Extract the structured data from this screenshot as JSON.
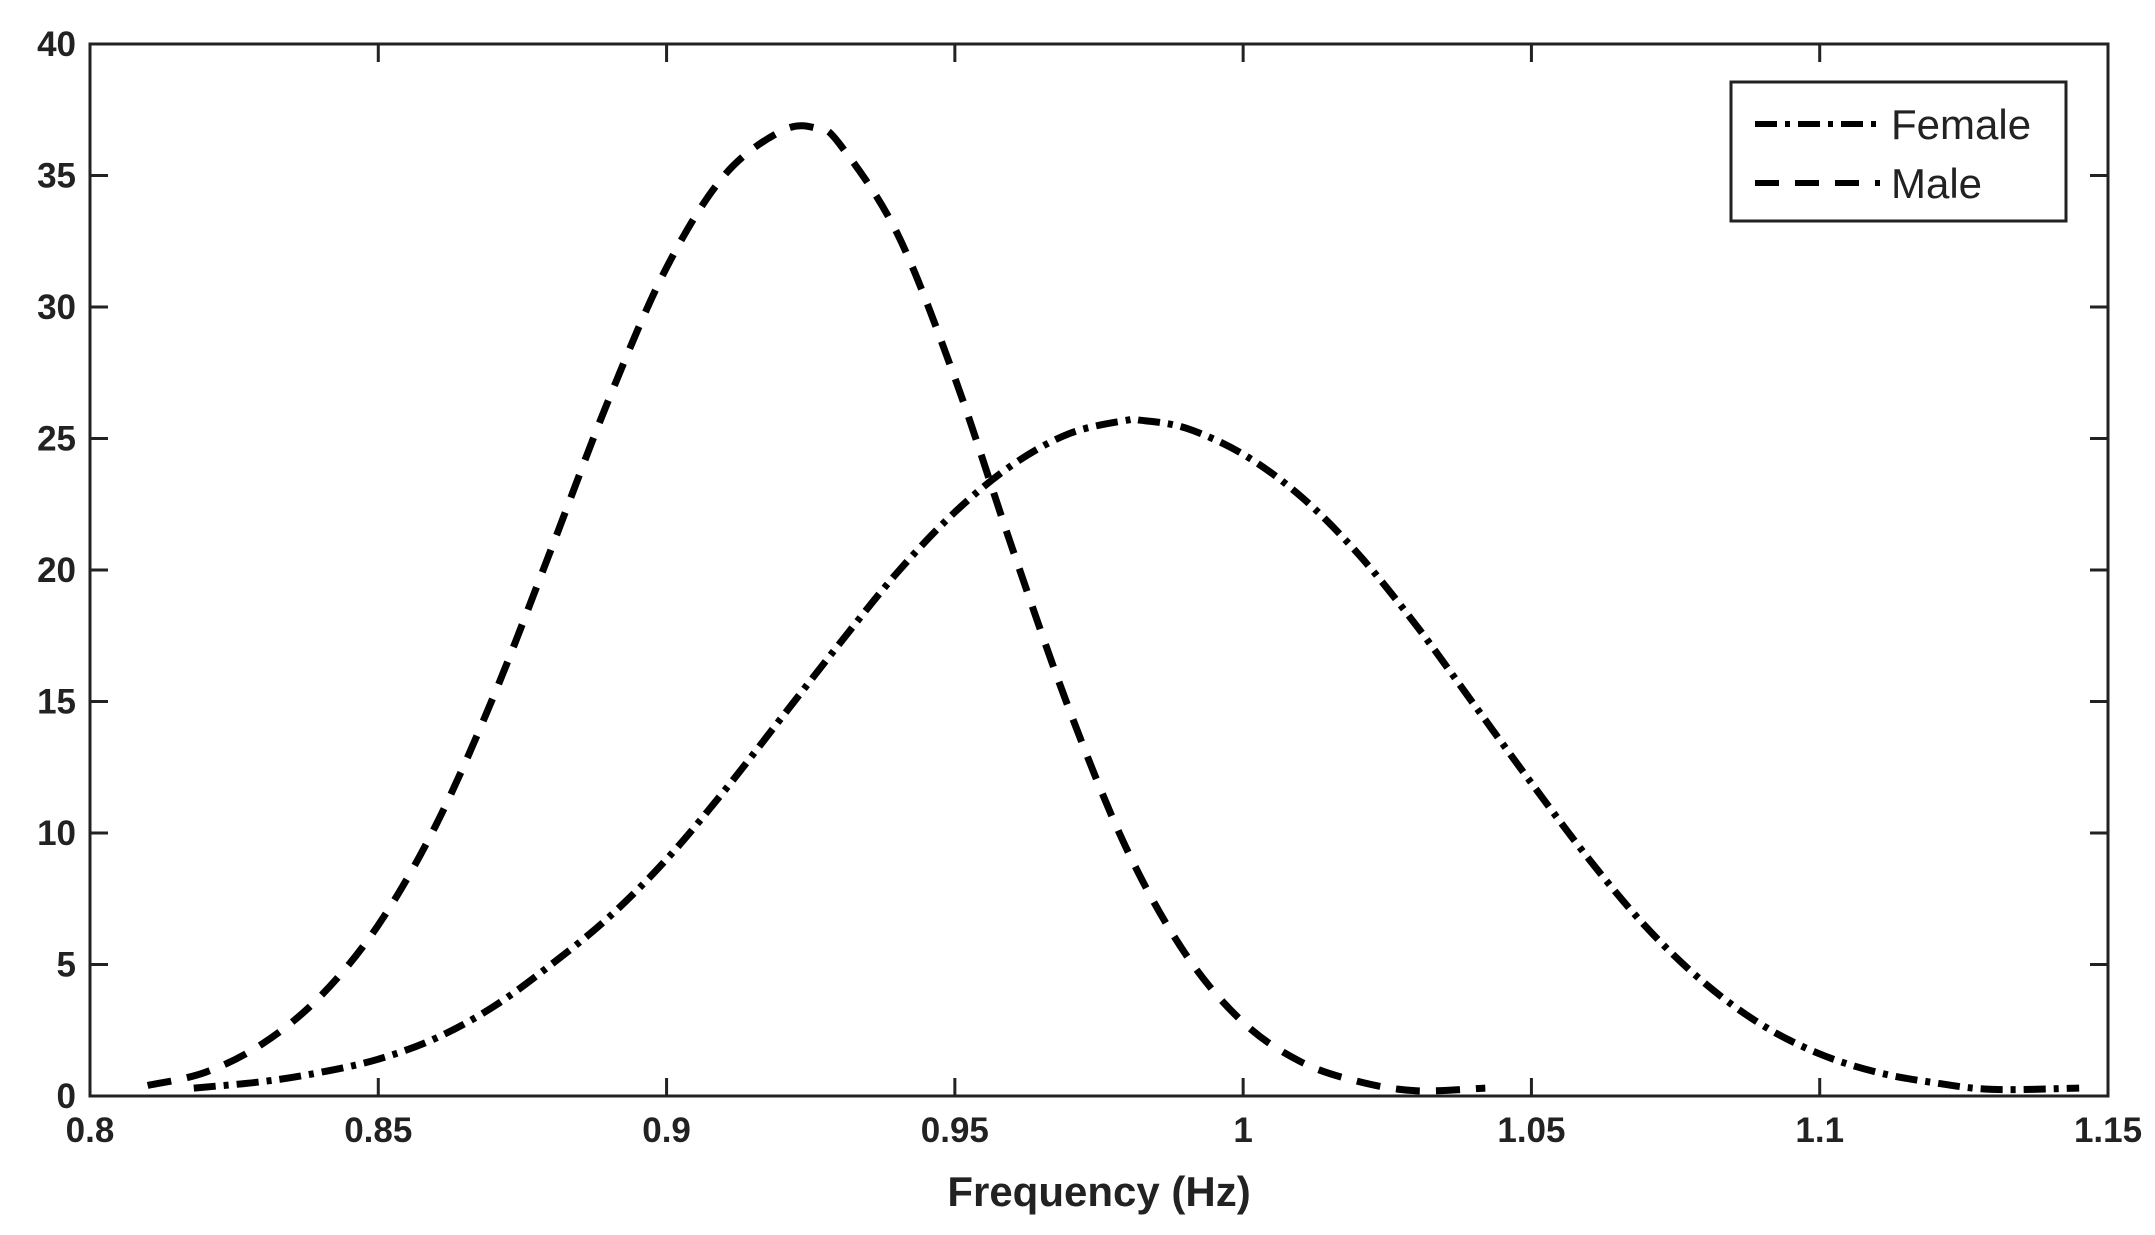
{
  "chart_data": {
    "type": "line",
    "title": "",
    "xlabel": "Frequency (Hz)",
    "ylabel": "",
    "xlim": [
      0.8,
      1.15
    ],
    "ylim": [
      0,
      40
    ],
    "xticks": [
      0.8,
      0.85,
      0.9,
      0.95,
      1.0,
      1.05,
      1.1,
      1.15
    ],
    "xtick_labels": [
      "0.8",
      "0.85",
      "0.9",
      "0.95",
      "1",
      "1.05",
      "1.1",
      "1.15"
    ],
    "yticks": [
      0,
      5,
      10,
      15,
      20,
      25,
      30,
      35,
      40
    ],
    "ytick_labels": [
      "0",
      "5",
      "10",
      "15",
      "20",
      "25",
      "30",
      "35",
      "40"
    ],
    "grid": false,
    "legend_position": "top-right",
    "series": [
      {
        "name": "Female",
        "style": "dash-dot",
        "color": "#000000",
        "x": [
          0.818,
          0.83,
          0.84,
          0.85,
          0.86,
          0.87,
          0.88,
          0.89,
          0.9,
          0.91,
          0.92,
          0.93,
          0.94,
          0.95,
          0.96,
          0.97,
          0.98,
          0.982,
          0.99,
          1.0,
          1.01,
          1.02,
          1.03,
          1.04,
          1.05,
          1.06,
          1.07,
          1.08,
          1.09,
          1.1,
          1.11,
          1.12,
          1.13,
          1.145
        ],
        "y": [
          0.3,
          0.55,
          0.9,
          1.4,
          2.2,
          3.4,
          5.0,
          6.8,
          9.0,
          11.6,
          14.4,
          17.2,
          19.9,
          22.2,
          24.0,
          25.2,
          25.7,
          25.7,
          25.4,
          24.4,
          22.8,
          20.6,
          17.9,
          14.9,
          11.9,
          9.0,
          6.4,
          4.3,
          2.7,
          1.6,
          0.9,
          0.5,
          0.25,
          0.3
        ]
      },
      {
        "name": "Male",
        "style": "dashed",
        "color": "#000000",
        "x": [
          0.81,
          0.82,
          0.83,
          0.84,
          0.85,
          0.86,
          0.87,
          0.88,
          0.89,
          0.9,
          0.91,
          0.92,
          0.926,
          0.93,
          0.94,
          0.95,
          0.96,
          0.97,
          0.98,
          0.99,
          1.0,
          1.01,
          1.02,
          1.03,
          1.042
        ],
        "y": [
          0.4,
          0.9,
          2.0,
          3.8,
          6.5,
          10.3,
          15.2,
          20.8,
          26.5,
          31.5,
          35.0,
          36.7,
          36.8,
          36.2,
          32.8,
          27.3,
          20.8,
          14.6,
          9.3,
          5.4,
          2.8,
          1.3,
          0.55,
          0.2,
          0.3
        ]
      }
    ]
  }
}
